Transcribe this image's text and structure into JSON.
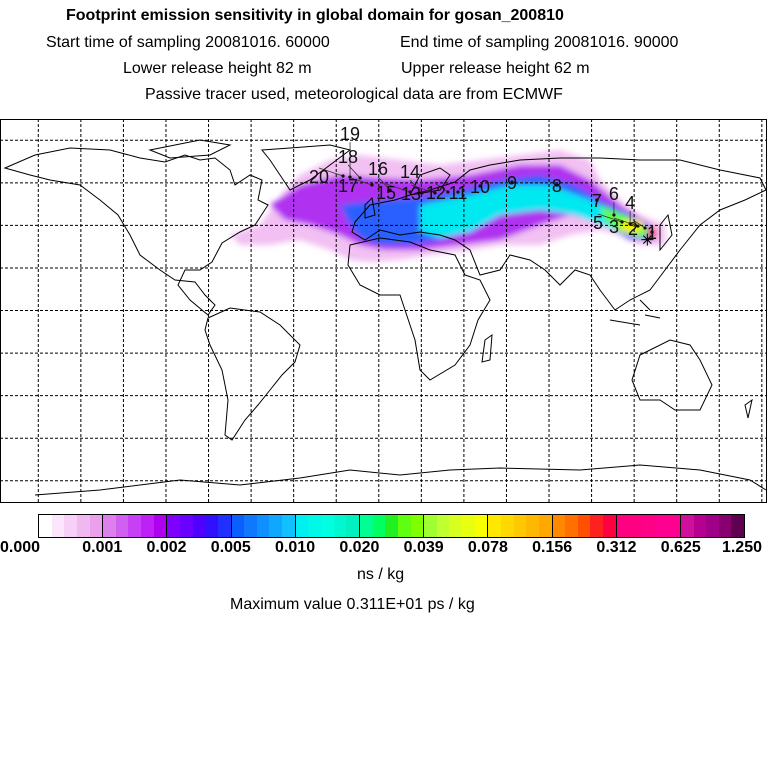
{
  "header": {
    "title": "Footprint emission sensitivity in global domain for gosan_200810",
    "start_time": "Start time of sampling 20081016. 60000",
    "end_time": "End time of sampling 20081016. 90000",
    "lower_height": "Lower release height   82 m",
    "upper_height": "Upper release height   62 m",
    "note": "Passive tracer used, meteorological data are from ECMWF"
  },
  "map": {
    "projection": "equirectangular",
    "grid_spacing_deg": 20,
    "receptor": {
      "name": "gosan",
      "lon": 126.2,
      "lat": 33.3
    },
    "day_markers": [
      {
        "label": "1",
        "lon": 128.4,
        "lat": 36.9
      },
      {
        "label": "2",
        "lon": 125.1,
        "lat": 38.8
      },
      {
        "label": "3",
        "lon": 121.8,
        "lat": 39.7
      },
      {
        "label": "4",
        "lon": 118.1,
        "lat": 40.7
      },
      {
        "label": "5",
        "lon": 114.3,
        "lat": 41.6
      },
      {
        "label": "6",
        "lon": 110.5,
        "lat": 44.9
      },
      {
        "label": "7",
        "lon": 102.5,
        "lat": 51.9
      },
      {
        "label": "8",
        "lon": 83.7,
        "lat": 59.0
      },
      {
        "label": "9",
        "lon": 62.6,
        "lat": 60.4
      },
      {
        "label": "10",
        "lon": 47.6,
        "lat": 58.5
      },
      {
        "label": "11",
        "lon": 37.2,
        "lat": 55.7
      },
      {
        "label": "12",
        "lon": 32.5,
        "lat": 55.7
      },
      {
        "label": "13",
        "lon": 26.4,
        "lat": 55.2
      },
      {
        "label": "14",
        "lon": 20.3,
        "lat": 55.2
      },
      {
        "label": "15",
        "lon": 14.7,
        "lat": 55.7
      },
      {
        "label": "16",
        "lon": 5.3,
        "lat": 56.6
      },
      {
        "label": "17",
        "lon": -3.2,
        "lat": 59.0
      },
      {
        "label": "18",
        "lon": -8.8,
        "lat": 62.3
      },
      {
        "label": "19",
        "lon": -13.5,
        "lat": 62.7
      },
      {
        "label": "20",
        "lon": -16.8,
        "lat": 63.2
      }
    ]
  },
  "colorbar": {
    "ticks": [
      "0.000",
      "0.001",
      "0.002",
      "0.005",
      "0.010",
      "0.020",
      "0.039",
      "0.078",
      "0.156",
      "0.312",
      "0.625",
      "1.250"
    ],
    "segments": [
      [
        "#ffffff",
        "#fbe6fb",
        "#f6d0f6",
        "#f0b8f0",
        "#eaa0ea"
      ],
      [
        "#dd80ee",
        "#d060f0",
        "#c840f5",
        "#c020f8",
        "#b000f0"
      ],
      [
        "#8000ff",
        "#6a00ff",
        "#5000ff",
        "#3010ff",
        "#2030ff"
      ],
      [
        "#0a60ff",
        "#1078ff",
        "#1090ff",
        "#10a8ff",
        "#10c0ff"
      ],
      [
        "#00f0f0",
        "#00f8e8",
        "#00ffe0",
        "#00f8d0",
        "#00f0c0"
      ],
      [
        "#00ff90",
        "#00ff60",
        "#20f020",
        "#60ff10",
        "#80ff00"
      ],
      [
        "#a0ff30",
        "#c0ff30",
        "#d8ff20",
        "#e8ff10",
        "#f8ff00"
      ],
      [
        "#ffe800",
        "#ffd800",
        "#ffc800",
        "#ffb800",
        "#ffa800"
      ],
      [
        "#ff8800",
        "#ff7000",
        "#ff5000",
        "#ff2020",
        "#ff0040"
      ],
      [
        "#ff0080",
        "#ff0080",
        "#ff0088",
        "#ff0090",
        "#ff0090"
      ],
      [
        "#d0109a",
        "#b80090",
        "#a00088",
        "#880070",
        "#600050"
      ]
    ],
    "unit": "ns / kg",
    "max_value": "Maximum value  0.311E+01 ps / kg"
  }
}
